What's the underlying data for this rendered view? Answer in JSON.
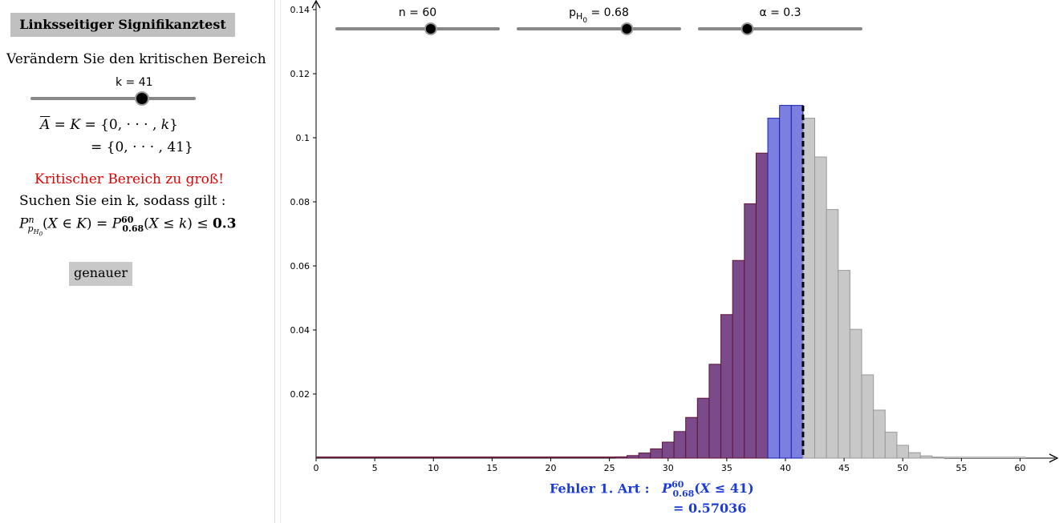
{
  "left": {
    "title": "Linksseitiger Signifikanztest",
    "instruction": "Verändern Sie den kritischen Bereich",
    "k_slider": {
      "label": "k = 41",
      "value": 41,
      "min": 0,
      "max": 60
    },
    "set_line1_lhs": "A = K = {0, · · · , k}",
    "set_line2": "= {0, · · · , 41}",
    "warning": "Kritischer Bereich zu groß!",
    "search_text": "Suchen Sie ein k, sodass gilt :",
    "condition": "P(X ∈ K) = P(X ≤ k) ≤ 0.3",
    "button_label": "genauer"
  },
  "sliders": [
    {
      "label_main": "n = 60",
      "label_sub": "",
      "label_rest": "",
      "fraction": 0.58
    },
    {
      "label_main": "p",
      "label_sub": "H",
      "label_sub2": "0",
      "label_rest": " = 0.68",
      "fraction": 0.67
    },
    {
      "label_main": "α = 0.3",
      "label_sub": "",
      "label_rest": "",
      "fraction": 0.3
    }
  ],
  "bottom": {
    "line1_prefix": "Fehler 1. Art :",
    "line1_formula": "P(X ≤ 41)",
    "line2": "= 0.57036"
  },
  "colors": {
    "critical_region": "#7a4a8a",
    "blue_region": "#7b7fe0",
    "acceptance_region": "#c8c8c8",
    "warning": "#e00000",
    "result": "#1a3bd8"
  },
  "chart_data": {
    "type": "bar",
    "n": 60,
    "p": 0.68,
    "k": 41,
    "xlim": [
      0,
      63
    ],
    "ylim": [
      0,
      0.14
    ],
    "x_ticks": [
      0,
      5,
      10,
      15,
      20,
      25,
      30,
      35,
      40,
      45,
      50,
      55,
      60
    ],
    "y_ticks": [
      0.02,
      0.04,
      0.06,
      0.08,
      0.1,
      0.12,
      0.14
    ],
    "y_tick_labels": [
      "0.02",
      "0.04",
      "0.06",
      "0.08",
      "0.1",
      "0.12",
      "0.14"
    ],
    "x": [
      26,
      27,
      28,
      29,
      30,
      31,
      32,
      33,
      34,
      35,
      36,
      37,
      38,
      39,
      40,
      41,
      42,
      43,
      44,
      45,
      46,
      47,
      48,
      49,
      50,
      51,
      52,
      53
    ],
    "values": [
      0.0004,
      0.0008,
      0.0016,
      0.0029,
      0.005,
      0.0083,
      0.0127,
      0.0187,
      0.0293,
      0.0448,
      0.0617,
      0.0794,
      0.0952,
      0.1061,
      0.1101,
      0.1101,
      0.1061,
      0.094,
      0.0776,
      0.0586,
      0.0402,
      0.026,
      0.015,
      0.0081,
      0.004,
      0.0017,
      0.0007,
      0.0002
    ],
    "regions": [
      {
        "name": "dark",
        "from": 0,
        "to": 38
      },
      {
        "name": "blue",
        "from": 39,
        "to": 41
      },
      {
        "name": "gray",
        "from": 42,
        "to": 60
      }
    ],
    "critical_line_x": 41
  }
}
